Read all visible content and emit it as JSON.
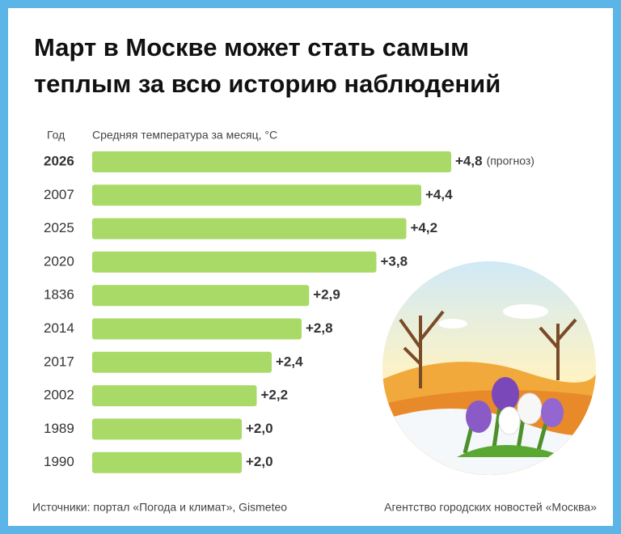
{
  "chart_data": {
    "type": "bar",
    "orientation": "horizontal",
    "title": "Март в Москве может стать самым теплым за всю историю наблюдений",
    "y_label": "Год",
    "x_label": "Средняя температура за месяц, °С",
    "categories": [
      "2026",
      "2007",
      "2025",
      "2020",
      "1836",
      "2014",
      "2017",
      "2002",
      "1989",
      "1990"
    ],
    "values": [
      4.8,
      4.4,
      4.2,
      3.8,
      2.9,
      2.8,
      2.4,
      2.2,
      2.0,
      2.0
    ],
    "value_labels": [
      "+4,8",
      "+4,4",
      "+4,2",
      "+3,8",
      "+2,9",
      "+2,8",
      "+2,4",
      "+2,2",
      "+2,0",
      "+2,0"
    ],
    "annotation": "(прогноз)",
    "highlight": 0,
    "color": "#a9d967",
    "label_color": "#2e7d32"
  },
  "footer": {
    "sources": "Источники: портал «Погода и климат», Gismeteo",
    "agency": "Агентство городских новостей «Москва»"
  }
}
